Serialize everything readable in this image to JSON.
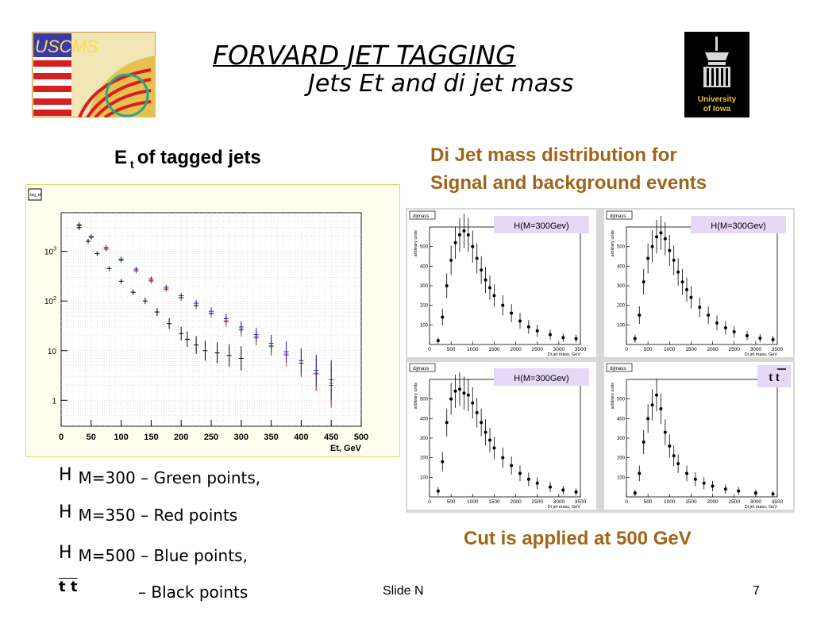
{
  "logos": {
    "left_text": "USCMS",
    "right_text": "University of Iowa"
  },
  "slide": {
    "title": "FORVARD JET  TAGGING",
    "subtitle": "Jets Et and di jet mass",
    "footer_label": "Slide N",
    "page_number": "7"
  },
  "left_panel": {
    "heading_main": "E",
    "heading_sub": "t",
    "heading_rest": "of tagged jets"
  },
  "right_panel": {
    "heading_line1": "Di Jet   mass   distribution  for",
    "heading_line2": "Signal and background events",
    "cut_text": "Cut is applied at 500 GeV"
  },
  "legend": [
    {
      "h": "H",
      "text": "M=300 – Green points,"
    },
    {
      "h": "H",
      "text": "M=350 – Red    points"
    },
    {
      "h": "H",
      "text": "M=500 – Blue    points,"
    },
    {
      "h": "t t",
      "text": "– Black   points"
    }
  ],
  "chart_data": [
    {
      "type": "scatter",
      "stat_box": "tag_et",
      "xlabel": "Et, GeV",
      "ylabel": "",
      "xlim": [
        0,
        500
      ],
      "ylim_log": [
        0.3,
        6000
      ],
      "log_y": true,
      "grid": true,
      "x_ticks": [
        "0",
        "50",
        "100",
        "150",
        "200",
        "250",
        "300",
        "350",
        "400",
        "450",
        "500"
      ],
      "y_ticks": [
        "1",
        "10",
        "10^2",
        "10^3"
      ],
      "series": [
        {
          "color": "#22bb22",
          "x": [
            30,
            50,
            75,
            100,
            125,
            150,
            175,
            200,
            225,
            250,
            275,
            300,
            325,
            350,
            375,
            400,
            425,
            450
          ],
          "y": [
            3500,
            1900,
            1100,
            650,
            400,
            250,
            170,
            115,
            80,
            55,
            38,
            26,
            18,
            12,
            8,
            5.5,
            3.5,
            2.2
          ]
        },
        {
          "color": "#dd2222",
          "x": [
            30,
            50,
            75,
            100,
            125,
            150,
            175,
            200,
            225,
            250,
            275,
            300,
            325,
            350,
            375,
            400,
            425,
            450
          ],
          "y": [
            3400,
            1950,
            1120,
            680,
            410,
            260,
            175,
            118,
            82,
            57,
            40,
            27,
            19,
            12.5,
            8.5,
            5.6,
            3.4,
            2.0
          ]
        },
        {
          "color": "#2222cc",
          "x": [
            30,
            50,
            75,
            100,
            125,
            150,
            175,
            200,
            225,
            250,
            275,
            300,
            325,
            350,
            375,
            400,
            425,
            450
          ],
          "y": [
            3300,
            2000,
            1200,
            700,
            440,
            280,
            190,
            128,
            90,
            62,
            44,
            30,
            21,
            14,
            9.5,
            6.3,
            4.0,
            2.6
          ]
        },
        {
          "color": "#000000",
          "x": [
            30,
            45,
            60,
            80,
            100,
            120,
            140,
            160,
            180,
            200,
            210,
            225,
            240,
            260,
            280,
            300
          ],
          "y": [
            3000,
            1600,
            900,
            450,
            250,
            150,
            100,
            60,
            35,
            22,
            17,
            13,
            10,
            9,
            8,
            7
          ]
        }
      ]
    },
    {
      "type": "scatter",
      "stat_box": "dijmass",
      "label": "H(M=300Gev)",
      "xlabel": "Di jet mass, GeV",
      "ylabel": "arbitrary units",
      "xlim": [
        0,
        3500
      ],
      "ylim": [
        0,
        600
      ],
      "x_ticks": [
        "0",
        "500",
        "1000",
        "1500",
        "2000",
        "2500",
        "3000",
        "3500"
      ],
      "y_ticks": [
        "100",
        "200",
        "300",
        "400",
        "500"
      ],
      "x": [
        200,
        300,
        400,
        500,
        600,
        700,
        800,
        900,
        1000,
        1100,
        1200,
        1300,
        1400,
        1500,
        1700,
        1900,
        2100,
        2300,
        2500,
        2800,
        3100,
        3400
      ],
      "y": [
        20,
        140,
        300,
        430,
        520,
        560,
        580,
        560,
        500,
        440,
        380,
        330,
        290,
        250,
        200,
        160,
        120,
        90,
        70,
        50,
        35,
        30
      ]
    },
    {
      "type": "scatter",
      "stat_box": "dijmass",
      "label": "H(M=300Gev)",
      "xlabel": "Di jet mass, GeV",
      "ylabel": "arbitrary units",
      "xlim": [
        0,
        3500
      ],
      "ylim": [
        0,
        600
      ],
      "x_ticks": [
        "0",
        "500",
        "1000",
        "1500",
        "2000",
        "2500",
        "3000",
        "3500"
      ],
      "y_ticks": [
        "100",
        "200",
        "300",
        "400",
        "500"
      ],
      "x": [
        200,
        300,
        400,
        500,
        600,
        700,
        800,
        900,
        1000,
        1100,
        1200,
        1300,
        1400,
        1500,
        1700,
        1900,
        2100,
        2300,
        2500,
        2800,
        3100,
        3400
      ],
      "y": [
        30,
        150,
        320,
        440,
        500,
        550,
        570,
        540,
        480,
        430,
        370,
        320,
        280,
        240,
        190,
        150,
        110,
        85,
        65,
        45,
        32,
        25
      ]
    },
    {
      "type": "scatter",
      "stat_box": "dijmass",
      "label": "H(M=300Gev)",
      "xlabel": "Di jet mass, GeV",
      "ylabel": "arbitrary units",
      "xlim": [
        0,
        3500
      ],
      "ylim": [
        0,
        600
      ],
      "x_ticks": [
        "0",
        "500",
        "1000",
        "1500",
        "2000",
        "2500",
        "3000",
        "3500"
      ],
      "y_ticks": [
        "100",
        "200",
        "300",
        "400",
        "500"
      ],
      "x": [
        200,
        300,
        400,
        500,
        600,
        700,
        800,
        900,
        1000,
        1100,
        1200,
        1300,
        1400,
        1500,
        1700,
        1900,
        2100,
        2300,
        2500,
        2800,
        3100,
        3400
      ],
      "y": [
        30,
        180,
        380,
        500,
        540,
        550,
        530,
        520,
        480,
        430,
        380,
        330,
        290,
        250,
        200,
        160,
        120,
        90,
        70,
        50,
        35,
        25
      ]
    },
    {
      "type": "scatter",
      "stat_box": "dijmass",
      "label": "t t",
      "xlabel": "Di jet mass, GeV",
      "ylabel": "arbitrary units",
      "xlim": [
        0,
        3500
      ],
      "ylim": [
        0,
        600
      ],
      "x_ticks": [
        "0",
        "500",
        "1000",
        "1500",
        "2000",
        "2500",
        "3000",
        "3500"
      ],
      "y_ticks": [
        "100",
        "200",
        "300",
        "400",
        "500"
      ],
      "x": [
        200,
        300,
        400,
        500,
        600,
        700,
        800,
        900,
        1000,
        1100,
        1200,
        1400,
        1600,
        1800,
        2000,
        2300,
        2600,
        3000,
        3400
      ],
      "y": [
        20,
        120,
        280,
        400,
        470,
        520,
        450,
        330,
        260,
        210,
        170,
        120,
        90,
        70,
        55,
        40,
        30,
        20,
        15
      ]
    }
  ]
}
